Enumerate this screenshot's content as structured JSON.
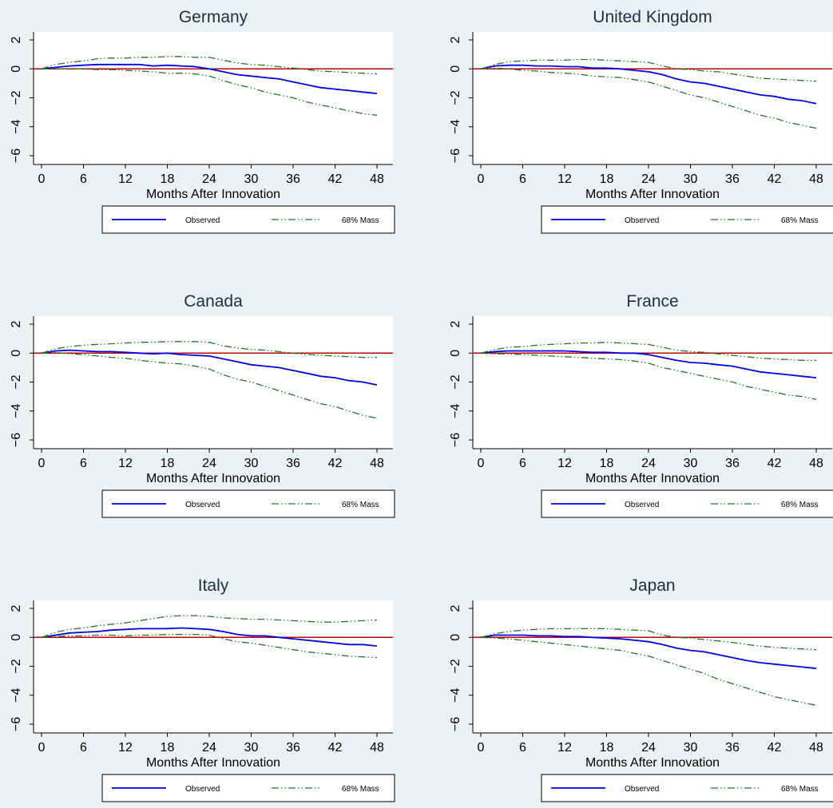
{
  "x_axis_label": "Months After Innovation",
  "legend": {
    "observed": "Observed",
    "mass": "68% Mass"
  },
  "colors": {
    "background": "#eaf2f3",
    "observed": "#0000ee",
    "mass": "#1f7a1f",
    "zero_line": "#c00000",
    "title": "#1c2e4a"
  },
  "chart_data": [
    {
      "type": "line",
      "title": "Germany",
      "xlabel": "Months After Innovation",
      "xlim": [
        0,
        48
      ],
      "ylim": [
        -6,
        2
      ],
      "xticks": [
        0,
        6,
        12,
        18,
        24,
        30,
        36,
        42,
        48
      ],
      "yticks": [
        2,
        0,
        -2,
        -4,
        -6
      ],
      "grid": false,
      "reference_line_y": 0,
      "x": [
        0,
        2,
        4,
        6,
        8,
        10,
        12,
        14,
        16,
        18,
        20,
        22,
        24,
        26,
        28,
        30,
        32,
        34,
        36,
        38,
        40,
        42,
        44,
        46,
        48
      ],
      "series": [
        {
          "name": "Observed",
          "style": "solid",
          "values": [
            0,
            0.1,
            0.2,
            0.25,
            0.3,
            0.3,
            0.3,
            0.3,
            0.2,
            0.25,
            0.2,
            0.15,
            0,
            -0.2,
            -0.4,
            -0.5,
            -0.6,
            -0.7,
            -0.9,
            -1.1,
            -1.3,
            -1.4,
            -1.5,
            -1.6,
            -1.7
          ]
        },
        {
          "name": "68% Mass",
          "style": "dash-dot",
          "values": [
            0,
            0.3,
            0.45,
            0.55,
            0.7,
            0.75,
            0.75,
            0.8,
            0.8,
            0.85,
            0.85,
            0.8,
            0.8,
            0.6,
            0.4,
            0.3,
            0.25,
            0.15,
            0.05,
            -0.05,
            -0.15,
            -0.2,
            -0.25,
            -0.3,
            -0.35
          ]
        },
        {
          "values": [
            0,
            0,
            0,
            0,
            -0.05,
            -0.05,
            -0.1,
            -0.15,
            -0.2,
            -0.3,
            -0.3,
            -0.35,
            -0.5,
            -0.8,
            -1.1,
            -1.3,
            -1.6,
            -1.8,
            -2.0,
            -2.3,
            -2.5,
            -2.7,
            -2.9,
            -3.1,
            -3.2
          ]
        }
      ]
    },
    {
      "type": "line",
      "title": "United Kingdom",
      "xlabel": "Months After Innovation",
      "xlim": [
        0,
        48
      ],
      "ylim": [
        -6,
        2
      ],
      "xticks": [
        0,
        6,
        12,
        18,
        24,
        30,
        36,
        42,
        48
      ],
      "yticks": [
        2,
        0,
        -2,
        -4,
        -6
      ],
      "grid": false,
      "reference_line_y": 0,
      "x": [
        0,
        2,
        4,
        6,
        8,
        10,
        12,
        14,
        16,
        18,
        20,
        22,
        24,
        26,
        28,
        30,
        32,
        34,
        36,
        38,
        40,
        42,
        44,
        46,
        48
      ],
      "series": [
        {
          "name": "Observed",
          "style": "solid",
          "values": [
            0,
            0.2,
            0.25,
            0.25,
            0.2,
            0.2,
            0.15,
            0.15,
            0.05,
            0.05,
            0,
            -0.1,
            -0.2,
            -0.4,
            -0.7,
            -0.9,
            -1.0,
            -1.2,
            -1.4,
            -1.6,
            -1.8,
            -1.9,
            -2.1,
            -2.2,
            -2.4
          ]
        },
        {
          "name": "68% Mass",
          "style": "dash-dot",
          "values": [
            0,
            0.3,
            0.5,
            0.55,
            0.6,
            0.6,
            0.6,
            0.65,
            0.65,
            0.6,
            0.55,
            0.5,
            0.45,
            0.2,
            0,
            -0.05,
            -0.15,
            -0.2,
            -0.35,
            -0.5,
            -0.65,
            -0.7,
            -0.75,
            -0.8,
            -0.85
          ]
        },
        {
          "values": [
            0,
            0.05,
            0,
            -0.1,
            -0.15,
            -0.25,
            -0.3,
            -0.35,
            -0.5,
            -0.55,
            -0.6,
            -0.75,
            -0.9,
            -1.2,
            -1.5,
            -1.8,
            -2.0,
            -2.3,
            -2.6,
            -2.9,
            -3.2,
            -3.4,
            -3.7,
            -3.9,
            -4.1
          ]
        }
      ]
    },
    {
      "type": "line",
      "title": "Canada",
      "xlabel": "Months After Innovation",
      "xlim": [
        0,
        48
      ],
      "ylim": [
        -6,
        2
      ],
      "xticks": [
        0,
        6,
        12,
        18,
        24,
        30,
        36,
        42,
        48
      ],
      "yticks": [
        2,
        0,
        -2,
        -4,
        -6
      ],
      "grid": false,
      "reference_line_y": 0,
      "x": [
        0,
        2,
        4,
        6,
        8,
        10,
        12,
        14,
        16,
        18,
        20,
        22,
        24,
        26,
        28,
        30,
        32,
        34,
        36,
        38,
        40,
        42,
        44,
        46,
        48
      ],
      "series": [
        {
          "name": "Observed",
          "style": "solid",
          "values": [
            0,
            0.15,
            0.2,
            0.15,
            0.1,
            0.1,
            0.05,
            0,
            -0.05,
            0,
            -0.1,
            -0.15,
            -0.2,
            -0.4,
            -0.6,
            -0.8,
            -0.9,
            -1.0,
            -1.2,
            -1.4,
            -1.6,
            -1.7,
            -1.9,
            -2.0,
            -2.2
          ]
        },
        {
          "name": "68% Mass",
          "style": "dash-dot",
          "values": [
            0,
            0.3,
            0.45,
            0.55,
            0.6,
            0.65,
            0.7,
            0.75,
            0.75,
            0.8,
            0.8,
            0.8,
            0.75,
            0.5,
            0.35,
            0.25,
            0.2,
            0.1,
            0,
            -0.1,
            -0.15,
            -0.2,
            -0.25,
            -0.3,
            -0.3
          ]
        },
        {
          "values": [
            0,
            0.05,
            -0.05,
            -0.1,
            -0.2,
            -0.3,
            -0.35,
            -0.5,
            -0.6,
            -0.7,
            -0.75,
            -0.9,
            -1.1,
            -1.5,
            -1.8,
            -2.0,
            -2.3,
            -2.6,
            -2.9,
            -3.2,
            -3.5,
            -3.7,
            -4.0,
            -4.3,
            -4.5
          ]
        }
      ]
    },
    {
      "type": "line",
      "title": "France",
      "xlabel": "Months After Innovation",
      "xlim": [
        0,
        48
      ],
      "ylim": [
        -6,
        2
      ],
      "xticks": [
        0,
        6,
        12,
        18,
        24,
        30,
        36,
        42,
        48
      ],
      "yticks": [
        2,
        0,
        -2,
        -4,
        -6
      ],
      "grid": false,
      "reference_line_y": 0,
      "x": [
        0,
        2,
        4,
        6,
        8,
        10,
        12,
        14,
        16,
        18,
        20,
        22,
        24,
        26,
        28,
        30,
        32,
        34,
        36,
        38,
        40,
        42,
        44,
        46,
        48
      ],
      "series": [
        {
          "name": "Observed",
          "style": "solid",
          "values": [
            0,
            0.1,
            0.15,
            0.15,
            0.15,
            0.15,
            0.15,
            0.1,
            0.05,
            0.05,
            0,
            0,
            -0.1,
            -0.3,
            -0.5,
            -0.65,
            -0.7,
            -0.8,
            -0.9,
            -1.1,
            -1.3,
            -1.4,
            -1.5,
            -1.6,
            -1.7
          ]
        },
        {
          "name": "68% Mass",
          "style": "dash-dot",
          "values": [
            0,
            0.25,
            0.4,
            0.45,
            0.55,
            0.6,
            0.65,
            0.7,
            0.7,
            0.75,
            0.7,
            0.65,
            0.6,
            0.4,
            0.2,
            0.1,
            0.05,
            -0.05,
            -0.15,
            -0.25,
            -0.35,
            -0.4,
            -0.45,
            -0.5,
            -0.5
          ]
        },
        {
          "values": [
            0,
            -0.05,
            -0.05,
            -0.1,
            -0.15,
            -0.2,
            -0.25,
            -0.3,
            -0.35,
            -0.4,
            -0.45,
            -0.55,
            -0.7,
            -1.0,
            -1.2,
            -1.4,
            -1.6,
            -1.8,
            -2.0,
            -2.3,
            -2.5,
            -2.7,
            -2.9,
            -3.0,
            -3.2
          ]
        }
      ]
    },
    {
      "type": "line",
      "title": "Italy",
      "xlabel": "Months After Innovation",
      "xlim": [
        0,
        48
      ],
      "ylim": [
        -6,
        2
      ],
      "xticks": [
        0,
        6,
        12,
        18,
        24,
        30,
        36,
        42,
        48
      ],
      "yticks": [
        2,
        0,
        -2,
        -4,
        -6
      ],
      "grid": false,
      "reference_line_y": 0,
      "x": [
        0,
        2,
        4,
        6,
        8,
        10,
        12,
        14,
        16,
        18,
        20,
        22,
        24,
        26,
        28,
        30,
        32,
        34,
        36,
        38,
        40,
        42,
        44,
        46,
        48
      ],
      "series": [
        {
          "name": "Observed",
          "style": "solid",
          "values": [
            0,
            0.15,
            0.3,
            0.35,
            0.4,
            0.5,
            0.55,
            0.6,
            0.6,
            0.6,
            0.65,
            0.6,
            0.55,
            0.4,
            0.2,
            0.1,
            0.1,
            0,
            -0.1,
            -0.2,
            -0.3,
            -0.4,
            -0.5,
            -0.5,
            -0.6
          ]
        },
        {
          "name": "68% Mass",
          "style": "dash-dot",
          "values": [
            0,
            0.35,
            0.55,
            0.65,
            0.8,
            0.9,
            1.0,
            1.15,
            1.3,
            1.45,
            1.5,
            1.5,
            1.45,
            1.35,
            1.3,
            1.25,
            1.25,
            1.2,
            1.15,
            1.1,
            1.05,
            1.05,
            1.1,
            1.15,
            1.2
          ]
        },
        {
          "values": [
            0,
            0.05,
            0.1,
            0.1,
            0.15,
            0.15,
            0.1,
            0.15,
            0.15,
            0.2,
            0.2,
            0.2,
            0.15,
            -0.1,
            -0.3,
            -0.4,
            -0.55,
            -0.7,
            -0.85,
            -1.0,
            -1.1,
            -1.2,
            -1.3,
            -1.35,
            -1.4
          ]
        }
      ]
    },
    {
      "type": "line",
      "title": "Japan",
      "xlabel": "Months After Innovation",
      "xlim": [
        0,
        48
      ],
      "ylim": [
        -6,
        2
      ],
      "xticks": [
        0,
        6,
        12,
        18,
        24,
        30,
        36,
        42,
        48
      ],
      "yticks": [
        2,
        0,
        -2,
        -4,
        -6
      ],
      "grid": false,
      "reference_line_y": 0,
      "x": [
        0,
        2,
        4,
        6,
        8,
        10,
        12,
        14,
        16,
        18,
        20,
        22,
        24,
        26,
        28,
        30,
        32,
        34,
        36,
        38,
        40,
        42,
        44,
        46,
        48
      ],
      "series": [
        {
          "name": "Observed",
          "style": "solid",
          "values": [
            0,
            0.15,
            0.15,
            0.15,
            0.1,
            0.1,
            0.05,
            0.05,
            0,
            -0.05,
            -0.1,
            -0.2,
            -0.3,
            -0.5,
            -0.75,
            -0.9,
            -1.0,
            -1.2,
            -1.4,
            -1.6,
            -1.75,
            -1.85,
            -1.95,
            -2.05,
            -2.15
          ]
        },
        {
          "name": "68% Mass",
          "style": "dash-dot",
          "values": [
            0,
            0.25,
            0.4,
            0.5,
            0.55,
            0.6,
            0.6,
            0.6,
            0.6,
            0.6,
            0.55,
            0.5,
            0.45,
            0.15,
            0,
            -0.05,
            -0.15,
            -0.25,
            -0.35,
            -0.5,
            -0.6,
            -0.7,
            -0.75,
            -0.8,
            -0.85
          ]
        },
        {
          "values": [
            0,
            -0.05,
            -0.1,
            -0.2,
            -0.3,
            -0.4,
            -0.5,
            -0.6,
            -0.7,
            -0.8,
            -0.9,
            -1.1,
            -1.3,
            -1.6,
            -1.9,
            -2.2,
            -2.5,
            -2.9,
            -3.2,
            -3.5,
            -3.8,
            -4.1,
            -4.3,
            -4.5,
            -4.7
          ]
        }
      ]
    }
  ]
}
